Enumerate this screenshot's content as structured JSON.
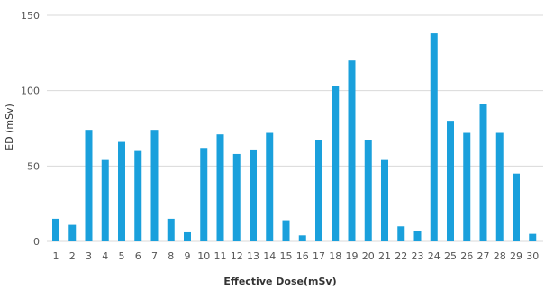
{
  "chart_data": {
    "type": "bar",
    "title": "",
    "xlabel": "Effective Dose(mSv)",
    "ylabel": "ED (mSv)",
    "ylim": [
      0,
      150
    ],
    "yticks": [
      0,
      50,
      100,
      150
    ],
    "grid": true,
    "bar_color": "#1aa0dc",
    "grid_color": "#d9d9d9",
    "categories": [
      "1",
      "2",
      "3",
      "4",
      "5",
      "6",
      "7",
      "8",
      "9",
      "10",
      "11",
      "12",
      "13",
      "14",
      "15",
      "16",
      "17",
      "18",
      "19",
      "20",
      "21",
      "22",
      "23",
      "24",
      "25",
      "26",
      "27",
      "28",
      "29",
      "30"
    ],
    "values": [
      15,
      11,
      74,
      54,
      66,
      60,
      74,
      15,
      6,
      62,
      71,
      58,
      61,
      72,
      14,
      4,
      67,
      103,
      120,
      67,
      54,
      10,
      7,
      138,
      80,
      72,
      91,
      72,
      45,
      5
    ]
  }
}
